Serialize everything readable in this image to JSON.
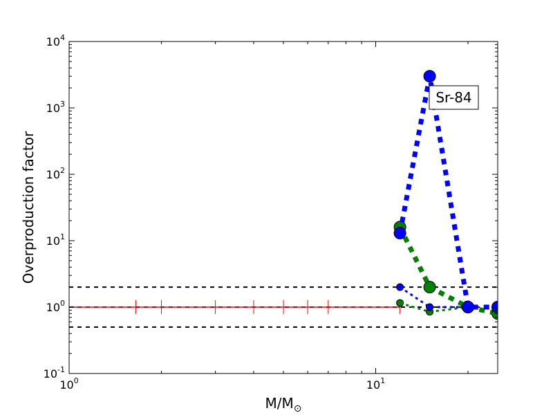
{
  "chart_data": {
    "type": "line",
    "xscale": "log",
    "yscale": "log",
    "xlim": [
      1,
      25
    ],
    "ylim": [
      0.1,
      10000
    ],
    "xlabel": "M/M",
    "xlabel_sub": "⊙",
    "ylabel": "Overproduction factor",
    "x_tick_labels": [
      {
        "value": 1,
        "base": "10",
        "exp": "0"
      },
      {
        "value": 10,
        "base": "10",
        "exp": "1"
      }
    ],
    "y_tick_labels": [
      {
        "value": 0.1,
        "base": "10",
        "exp": "-1"
      },
      {
        "value": 1,
        "base": "10",
        "exp": "0"
      },
      {
        "value": 10,
        "base": "10",
        "exp": "1"
      },
      {
        "value": 100,
        "base": "10",
        "exp": "2"
      },
      {
        "value": 1000,
        "base": "10",
        "exp": "3"
      },
      {
        "value": 10000,
        "base": "10",
        "exp": "4"
      }
    ],
    "x_minor_ticks": [
      2,
      3,
      4,
      5,
      6,
      7,
      8,
      9,
      20
    ],
    "y_minor_ticks": [
      0.2,
      0.3,
      0.4,
      0.5,
      0.6,
      0.7,
      0.8,
      0.9,
      2,
      3,
      4,
      5,
      6,
      7,
      8,
      9,
      20,
      30,
      40,
      50,
      60,
      70,
      80,
      90,
      200,
      300,
      400,
      500,
      600,
      700,
      800,
      900,
      2000,
      3000,
      4000,
      5000,
      6000,
      7000,
      8000,
      9000
    ],
    "reference_lines": [
      {
        "y": 2.0,
        "color": "#000000",
        "style": "dashed"
      },
      {
        "y": 1.0,
        "color": "#000000",
        "style": "dashed"
      },
      {
        "y": 0.5,
        "color": "#000000",
        "style": "dashed"
      }
    ],
    "red_line": {
      "color": "#ff0000",
      "x_range": [
        1,
        12
      ],
      "y": 1.0,
      "markers_x": [
        1.65,
        2.0,
        3.0,
        4.0,
        5.0,
        6.0,
        7.0,
        12.0
      ]
    },
    "series": [
      {
        "color": "#0000ff",
        "style": "thick-dotted",
        "marker_size": "large",
        "x": [
          12,
          15,
          20,
          25
        ],
        "y": [
          13,
          3000,
          1.0,
          1.0
        ]
      },
      {
        "color": "#008000",
        "style": "thick-dotted",
        "marker_size": "large",
        "x": [
          12,
          15,
          20,
          25
        ],
        "y": [
          16,
          2.0,
          1.0,
          0.8
        ]
      },
      {
        "color": "#0000ff",
        "style": "thin-dotted",
        "marker_size": "small",
        "x": [
          12,
          15,
          20
        ],
        "y": [
          2.0,
          1.0,
          1.0
        ]
      },
      {
        "color": "#008000",
        "style": "thin-dotted",
        "marker_size": "small",
        "x": [
          12,
          15,
          20
        ],
        "y": [
          1.15,
          0.85,
          1.0
        ]
      }
    ],
    "annotation": {
      "text": "Sr-84"
    }
  }
}
